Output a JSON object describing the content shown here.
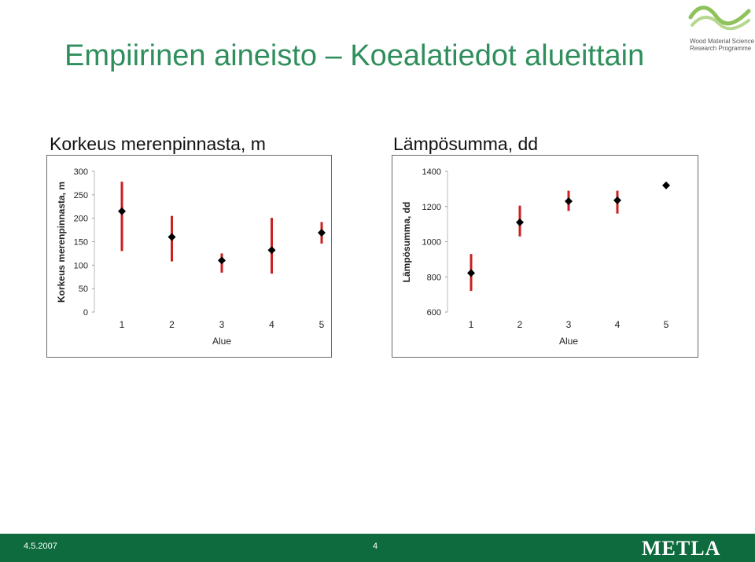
{
  "page": {
    "title": "Empiirinen aineisto – Koealatiedot alueittain",
    "logo_line1": "Wood Material Science",
    "logo_line2": "Research Programme",
    "logo_icon": "wave-logo-icon",
    "footer_date": "4.5.2007",
    "footer_page": "4",
    "footer_brand": "METLA",
    "colors": {
      "title": "#2f8f5c",
      "footer": "#0e6b3e",
      "error_bar": "#cc1f1f",
      "marker": "#000000",
      "logo_green": "#8fc25a"
    }
  },
  "chart_data": [
    {
      "type": "scatter",
      "title": "Korkeus merenpinnasta, m",
      "xlabel": "Alue",
      "ylabel": "Korkeus merenpinnasta, m",
      "categories": [
        "1",
        "2",
        "3",
        "4",
        "5"
      ],
      "values": [
        215,
        160,
        110,
        132,
        169
      ],
      "error_low": [
        130,
        108,
        84,
        82,
        146
      ],
      "error_high": [
        278,
        205,
        125,
        201,
        192
      ],
      "ylim": [
        0,
        300
      ],
      "yticks": [
        "0",
        "50",
        "100",
        "150",
        "200",
        "250",
        "300"
      ],
      "grid": false,
      "marker": "diamond"
    },
    {
      "type": "scatter",
      "title": "Lämpösumma, dd",
      "xlabel": "Alue",
      "ylabel": "Lämpösumma, dd",
      "categories": [
        "1",
        "2",
        "3",
        "4",
        "5"
      ],
      "values": [
        822,
        1110,
        1230,
        1235,
        1320
      ],
      "error_low": [
        720,
        1030,
        1175,
        1160,
        1305
      ],
      "error_high": [
        930,
        1205,
        1290,
        1290,
        1330
      ],
      "ylim": [
        600,
        1400
      ],
      "yticks": [
        "600",
        "800",
        "1000",
        "1200",
        "1400"
      ],
      "grid": false,
      "marker": "diamond"
    }
  ]
}
